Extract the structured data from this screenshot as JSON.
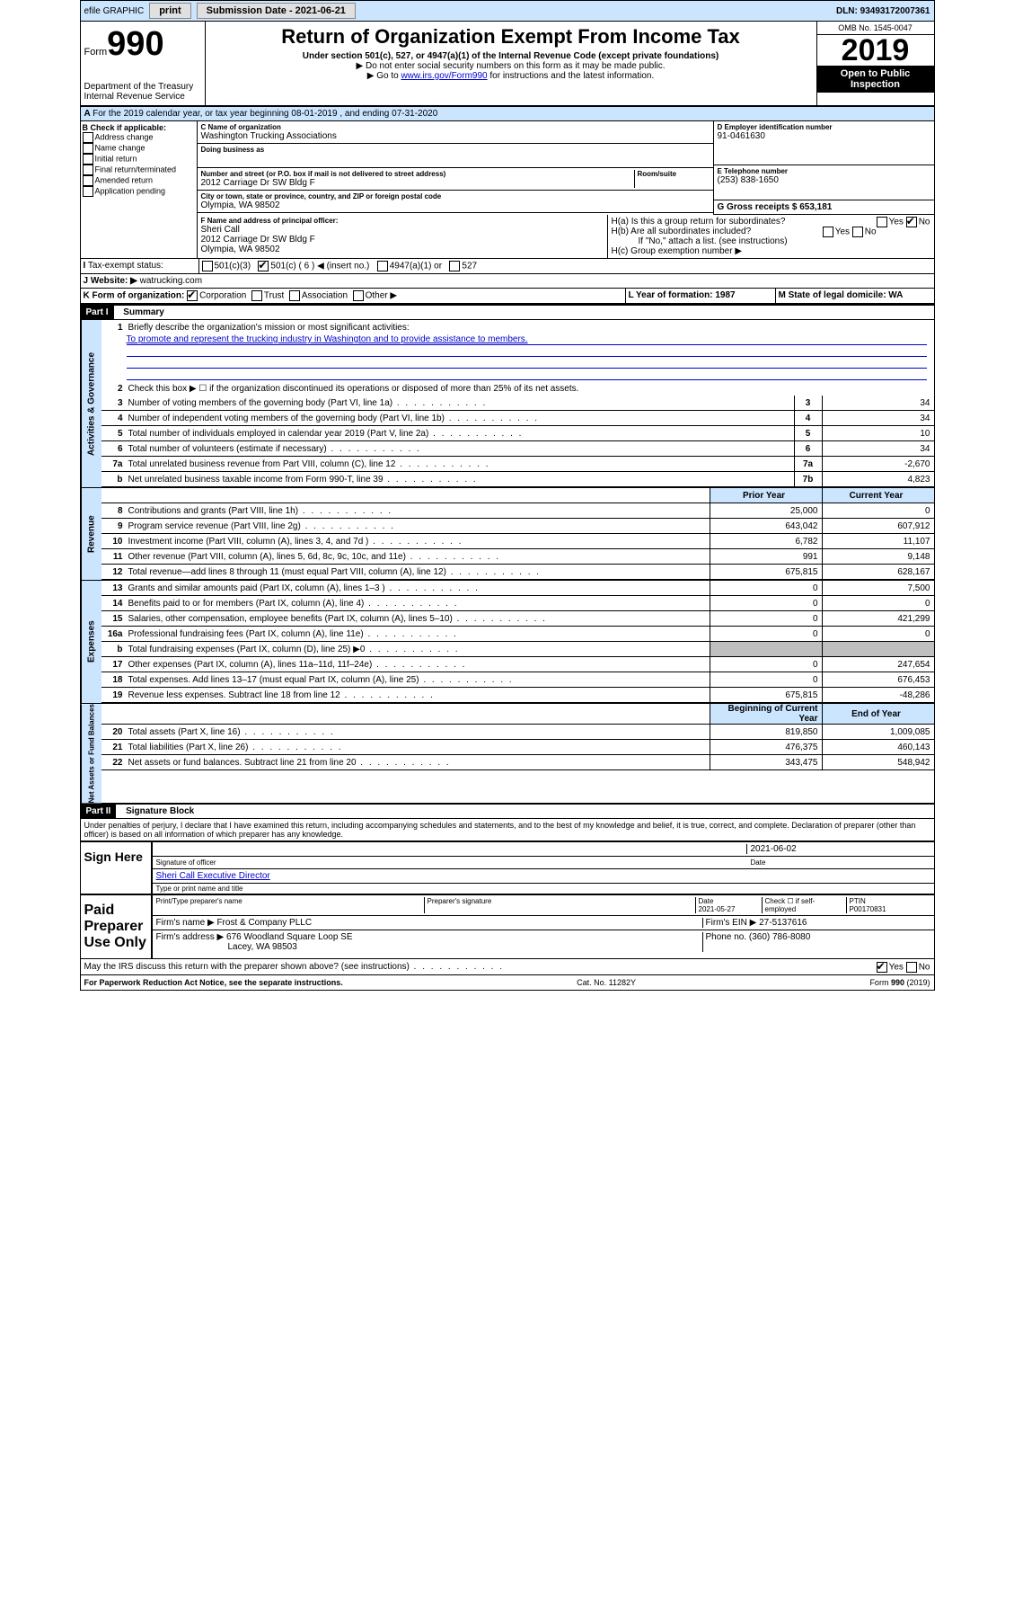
{
  "topbar": {
    "efile": "efile GRAPHIC",
    "print": "print",
    "subdate_lbl": "Submission Date - 2021-06-21",
    "dln": "DLN: 93493172007361"
  },
  "header": {
    "form_lbl": "Form",
    "form_no": "990",
    "dept": "Department of the Treasury",
    "irs": "Internal Revenue Service",
    "title": "Return of Organization Exempt From Income Tax",
    "sub1": "Under section 501(c), 527, or 4947(a)(1) of the Internal Revenue Code (except private foundations)",
    "sub2": "▶ Do not enter social security numbers on this form as it may be made public.",
    "sub3_pre": "▶ Go to ",
    "sub3_link": "www.irs.gov/Form990",
    "sub3_post": " for instructions and the latest information.",
    "omb": "OMB No. 1545-0047",
    "year": "2019",
    "open": "Open to Public Inspection"
  },
  "A": {
    "text": "For the 2019 calendar year, or tax year beginning 08-01-2019   , and ending 07-31-2020"
  },
  "B": {
    "lbl": "B Check if applicable:",
    "opts": [
      "Address change",
      "Name change",
      "Initial return",
      "Final return/terminated",
      "Amended return",
      "Application pending"
    ]
  },
  "C": {
    "name_lbl": "C Name of organization",
    "name": "Washington Trucking Associations",
    "dba_lbl": "Doing business as",
    "addr_lbl": "Number and street (or P.O. box if mail is not delivered to street address)",
    "room_lbl": "Room/suite",
    "addr": "2012 Carriage Dr SW Bldg F",
    "city_lbl": "City or town, state or province, country, and ZIP or foreign postal code",
    "city": "Olympia, WA  98502"
  },
  "D": {
    "lbl": "D Employer identification number",
    "val": "91-0461630"
  },
  "E": {
    "lbl": "E Telephone number",
    "val": "(253) 838-1650"
  },
  "G": {
    "lbl": "G Gross receipts $ 653,181"
  },
  "F": {
    "lbl": "F  Name and address of principal officer:",
    "name": "Sheri Call",
    "addr": "2012 Carriage Dr SW Bldg F",
    "city": "Olympia, WA  98502"
  },
  "H": {
    "a": "H(a)  Is this a group return for subordinates?",
    "b": "H(b)  Are all subordinates included?",
    "bnote": "If \"No,\" attach a list. (see instructions)",
    "c": "H(c)  Group exemption number ▶",
    "yes": "Yes",
    "no": "No"
  },
  "I": {
    "lbl": "Tax-exempt status:",
    "opts": [
      "501(c)(3)",
      "501(c) ( 6 ) ◀ (insert no.)",
      "4947(a)(1) or",
      "527"
    ]
  },
  "J": {
    "lbl": "Website: ▶",
    "val": "watrucking.com"
  },
  "K": {
    "lbl": "K Form of organization:",
    "opts": [
      "Corporation",
      "Trust",
      "Association",
      "Other ▶"
    ]
  },
  "L": {
    "lbl": "L Year of formation: 1987"
  },
  "M": {
    "lbl": "M State of legal domicile: WA"
  },
  "part1": {
    "bar": "Part I",
    "title": "Summary"
  },
  "gov": {
    "label": "Activities & Governance",
    "l1": "Briefly describe the organization's mission or most significant activities:",
    "l1v": "To promote and represent the trucking industry in Washington and to provide assistance to members.",
    "l2": "Check this box ▶ ☐  if the organization discontinued its operations or disposed of more than 25% of its net assets.",
    "rows": [
      {
        "n": "3",
        "d": "Number of voting members of the governing body (Part VI, line 1a)",
        "box": "3",
        "v": "34"
      },
      {
        "n": "4",
        "d": "Number of independent voting members of the governing body (Part VI, line 1b)",
        "box": "4",
        "v": "34"
      },
      {
        "n": "5",
        "d": "Total number of individuals employed in calendar year 2019 (Part V, line 2a)",
        "box": "5",
        "v": "10"
      },
      {
        "n": "6",
        "d": "Total number of volunteers (estimate if necessary)",
        "box": "6",
        "v": "34"
      },
      {
        "n": "7a",
        "d": "Total unrelated business revenue from Part VIII, column (C), line 12",
        "box": "7a",
        "v": "-2,670"
      },
      {
        "n": "b",
        "d": "Net unrelated business taxable income from Form 990-T, line 39",
        "box": "7b",
        "v": "4,823"
      }
    ]
  },
  "rev": {
    "label": "Revenue",
    "hdr_prior": "Prior Year",
    "hdr_curr": "Current Year",
    "rows": [
      {
        "n": "8",
        "d": "Contributions and grants (Part VIII, line 1h)",
        "p": "25,000",
        "c": "0"
      },
      {
        "n": "9",
        "d": "Program service revenue (Part VIII, line 2g)",
        "p": "643,042",
        "c": "607,912"
      },
      {
        "n": "10",
        "d": "Investment income (Part VIII, column (A), lines 3, 4, and 7d )",
        "p": "6,782",
        "c": "11,107"
      },
      {
        "n": "11",
        "d": "Other revenue (Part VIII, column (A), lines 5, 6d, 8c, 9c, 10c, and 11e)",
        "p": "991",
        "c": "9,148"
      },
      {
        "n": "12",
        "d": "Total revenue—add lines 8 through 11 (must equal Part VIII, column (A), line 12)",
        "p": "675,815",
        "c": "628,167"
      }
    ]
  },
  "exp": {
    "label": "Expenses",
    "rows": [
      {
        "n": "13",
        "d": "Grants and similar amounts paid (Part IX, column (A), lines 1–3 )",
        "p": "0",
        "c": "7,500"
      },
      {
        "n": "14",
        "d": "Benefits paid to or for members (Part IX, column (A), line 4)",
        "p": "0",
        "c": "0"
      },
      {
        "n": "15",
        "d": "Salaries, other compensation, employee benefits (Part IX, column (A), lines 5–10)",
        "p": "0",
        "c": "421,299"
      },
      {
        "n": "16a",
        "d": "Professional fundraising fees (Part IX, column (A), line 11e)",
        "p": "0",
        "c": "0"
      },
      {
        "n": "b",
        "d": "Total fundraising expenses (Part IX, column (D), line 25) ▶0",
        "p": "",
        "c": "",
        "shade": true
      },
      {
        "n": "17",
        "d": "Other expenses (Part IX, column (A), lines 11a–11d, 11f–24e)",
        "p": "0",
        "c": "247,654"
      },
      {
        "n": "18",
        "d": "Total expenses. Add lines 13–17 (must equal Part IX, column (A), line 25)",
        "p": "0",
        "c": "676,453"
      },
      {
        "n": "19",
        "d": "Revenue less expenses. Subtract line 18 from line 12",
        "p": "675,815",
        "c": "-48,286"
      }
    ]
  },
  "net": {
    "label": "Net Assets or Fund Balances",
    "hdr_beg": "Beginning of Current Year",
    "hdr_end": "End of Year",
    "rows": [
      {
        "n": "20",
        "d": "Total assets (Part X, line 16)",
        "p": "819,850",
        "c": "1,009,085"
      },
      {
        "n": "21",
        "d": "Total liabilities (Part X, line 26)",
        "p": "476,375",
        "c": "460,143"
      },
      {
        "n": "22",
        "d": "Net assets or fund balances. Subtract line 21 from line 20",
        "p": "343,475",
        "c": "548,942"
      }
    ]
  },
  "part2": {
    "bar": "Part II",
    "title": "Signature Block"
  },
  "perjury": "Under penalties of perjury, I declare that I have examined this return, including accompanying schedules and statements, and to the best of my knowledge and belief, it is true, correct, and complete. Declaration of preparer (other than officer) is based on all information of which preparer has any knowledge.",
  "sign": {
    "here": "Sign Here",
    "sig_lbl": "Signature of officer",
    "date": "2021-06-02",
    "date_lbl": "Date",
    "name": "Sheri Call Executive Director",
    "name_lbl": "Type or print name and title"
  },
  "paid": {
    "lbl": "Paid Preparer Use Only",
    "h1": "Print/Type preparer's name",
    "h2": "Preparer's signature",
    "h3": "Date",
    "h3v": "2021-05-27",
    "h4": "Check ☐ if self-employed",
    "h5": "PTIN",
    "h5v": "P00170831",
    "firm_lbl": "Firm's name   ▶",
    "firm": "Frost & Company PLLC",
    "ein_lbl": "Firm's EIN ▶",
    "ein": "27-5137616",
    "addr_lbl": "Firm's address ▶",
    "addr": "676 Woodland Square Loop SE",
    "addr2": "Lacey, WA  98503",
    "ph_lbl": "Phone no. (360) 786-8080"
  },
  "discuss": "May the IRS discuss this return with the preparer shown above? (see instructions)",
  "foot": {
    "pra": "For Paperwork Reduction Act Notice, see the separate instructions.",
    "cat": "Cat. No. 11282Y",
    "form": "Form 990 (2019)"
  }
}
